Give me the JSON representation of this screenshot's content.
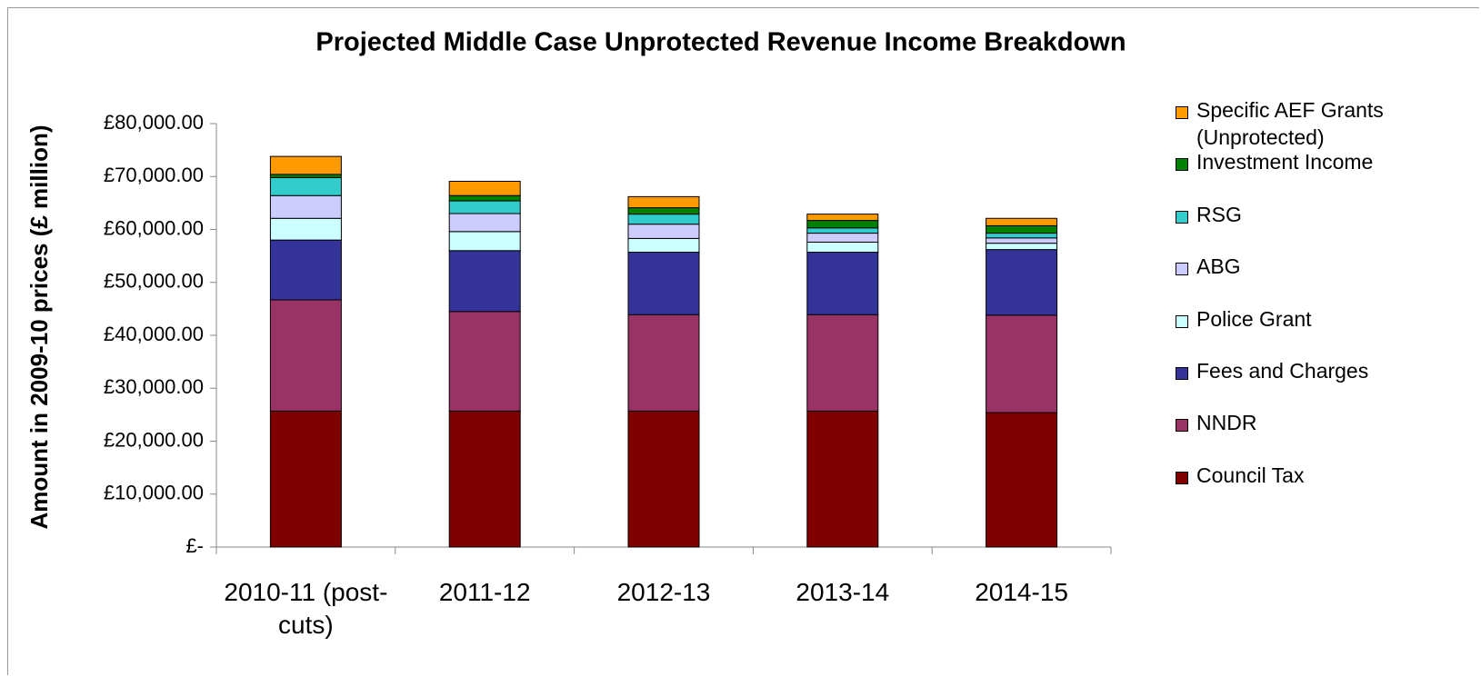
{
  "chart_data": {
    "type": "stacked_bar",
    "title": "Projected  Middle  Case Unprotected Revenue Income Breakdown",
    "y_label": "Amount in 2009-10 prices (£ million)",
    "categories": [
      "2010-11 (post-cuts)",
      "2011-12",
      "2012-13",
      "2013-14",
      "2014-15"
    ],
    "series": [
      {
        "name": "Council Tax",
        "color": "#800000",
        "values": [
          25700,
          25700,
          25700,
          25700,
          25400
        ]
      },
      {
        "name": "NNDR",
        "color": "#993366",
        "values": [
          21000,
          18800,
          18200,
          18200,
          18400
        ]
      },
      {
        "name": "Fees and Charges",
        "color": "#333399",
        "values": [
          11300,
          11500,
          11800,
          11800,
          12400
        ]
      },
      {
        "name": "Police Grant",
        "color": "#ccffff",
        "values": [
          4100,
          3600,
          2600,
          1900,
          1200
        ]
      },
      {
        "name": "ABG",
        "color": "#ccccff",
        "values": [
          4300,
          3400,
          2700,
          1700,
          1000
        ]
      },
      {
        "name": "RSG",
        "color": "#33cccc",
        "values": [
          3400,
          2400,
          1900,
          1000,
          900
        ]
      },
      {
        "name": "Investment Income",
        "color": "#008000",
        "values": [
          600,
          1000,
          1200,
          1400,
          1400
        ]
      },
      {
        "name": "Specific AEF Grants (Unprotected)",
        "color": "#ff9900",
        "values": [
          3400,
          2700,
          2100,
          1200,
          1400
        ]
      }
    ],
    "ylim": [
      0,
      80000
    ],
    "yticks": [
      {
        "value": 0,
        "label": "£-"
      },
      {
        "value": 10000,
        "label": "£10,000.00"
      },
      {
        "value": 20000,
        "label": "£20,000.00"
      },
      {
        "value": 30000,
        "label": "£30,000.00"
      },
      {
        "value": 40000,
        "label": "£40,000.00"
      },
      {
        "value": 50000,
        "label": "£50,000.00"
      },
      {
        "value": 60000,
        "label": "£60,000.00"
      },
      {
        "value": 70000,
        "label": "£70,000.00"
      },
      {
        "value": 80000,
        "label": "£80,000.00"
      }
    ],
    "legend": "right"
  }
}
